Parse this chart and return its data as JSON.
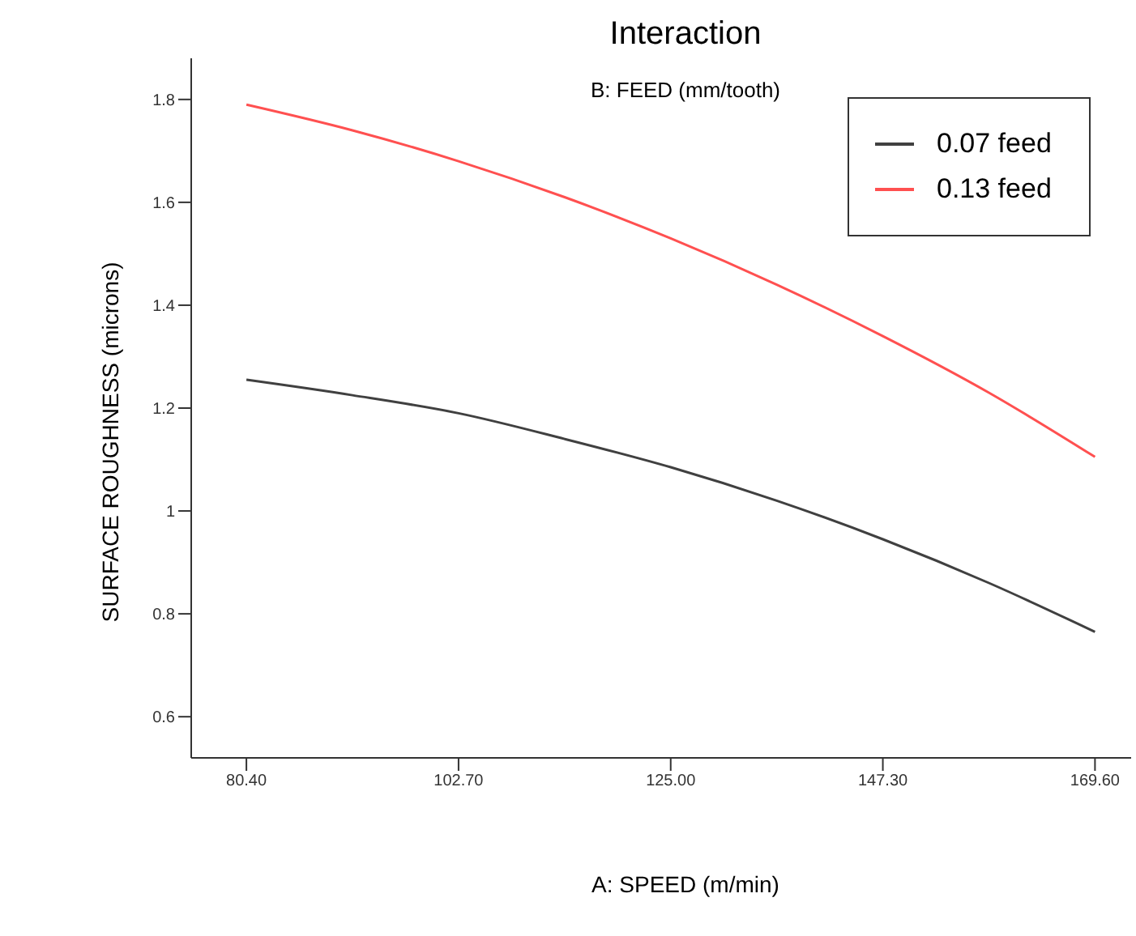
{
  "chart_data": {
    "type": "line",
    "title": "Interaction",
    "subtitle": "B: FEED (mm/tooth)",
    "xlabel": "A: SPEED (m/min)",
    "ylabel": "SURFACE ROUGHNESS (microns)",
    "x": [
      80.4,
      91.55,
      102.7,
      113.85,
      125,
      136.15,
      147.3,
      158.45,
      169.6
    ],
    "series": [
      {
        "name": "0.07 feed",
        "color": "#404040",
        "values": [
          1.255,
          1.225,
          1.19,
          1.14,
          1.085,
          1.02,
          0.945,
          0.86,
          0.765
        ]
      },
      {
        "name": "0.13 feed",
        "color": "#ff5050",
        "values": [
          1.79,
          1.74,
          1.68,
          1.61,
          1.53,
          1.44,
          1.34,
          1.23,
          1.105
        ]
      }
    ],
    "xlim": [
      74.6,
      173.4
    ],
    "xticks": [
      {
        "value": 80.4,
        "label": "80.40"
      },
      {
        "value": 102.7,
        "label": "102.70"
      },
      {
        "value": 125,
        "label": "125.00"
      },
      {
        "value": 147.3,
        "label": "147.30"
      },
      {
        "value": 169.6,
        "label": "169.60"
      }
    ],
    "ylim": [
      0.52,
      1.88
    ],
    "yticks": [
      0.6,
      0.8,
      1,
      1.2,
      1.4,
      1.6,
      1.8
    ],
    "legend": "top right",
    "marker": "none",
    "line_style": "solid",
    "grid": false
  }
}
